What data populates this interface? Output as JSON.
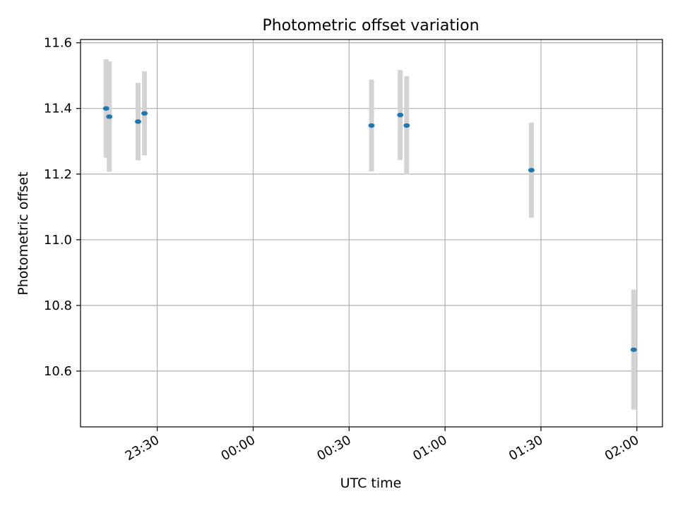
{
  "chart_data": {
    "type": "scatter",
    "title": "Photometric offset variation",
    "xlabel": "UTC time",
    "ylabel": "Photometric offset",
    "x_ticks": [
      "23:30",
      "00:00",
      "00:30",
      "01:00",
      "01:30",
      "02:00"
    ],
    "y_ticks": [
      "10.6",
      "10.8",
      "11.0",
      "11.2",
      "11.4",
      "11.6"
    ],
    "ylim": [
      10.43,
      11.61
    ],
    "xlim": [
      "23:06",
      "02:08"
    ],
    "grid": true,
    "colors": {
      "points": "#1f77b4",
      "error_bars": "#d3d3d3"
    },
    "points": [
      {
        "time": "23:14",
        "y": 11.4,
        "yerr": 0.15
      },
      {
        "time": "23:15",
        "y": 11.375,
        "yerr": 0.168
      },
      {
        "time": "23:24",
        "y": 11.36,
        "yerr": 0.118
      },
      {
        "time": "23:26",
        "y": 11.385,
        "yerr": 0.128
      },
      {
        "time": "00:37",
        "y": 11.348,
        "yerr": 0.14
      },
      {
        "time": "00:46",
        "y": 11.38,
        "yerr": 0.137
      },
      {
        "time": "00:48",
        "y": 11.348,
        "yerr": 0.15
      },
      {
        "time": "01:27",
        "y": 11.212,
        "yerr": 0.145
      },
      {
        "time": "01:59",
        "y": 10.665,
        "yerr": 0.183
      }
    ]
  }
}
